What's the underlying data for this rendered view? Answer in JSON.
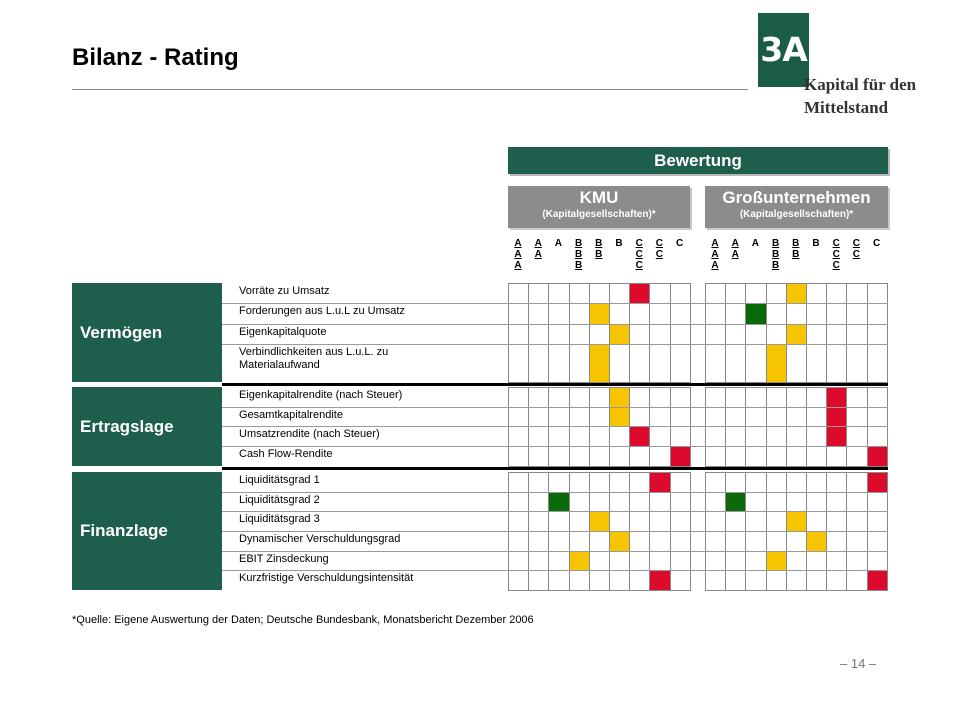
{
  "slide": {
    "title": "Bilanz - Rating",
    "logo": {
      "mark": "3A",
      "line1": "Kapital für den",
      "line2": "Mittelstand"
    },
    "header": "Bewertung",
    "groups": [
      {
        "name": "KMU",
        "sub": "(Kapitalgesellschaften)*"
      },
      {
        "name": "Großunternehmen",
        "sub": "(Kapitalgesellschaften)*"
      }
    ],
    "grades": [
      "A\nA\nA",
      "A\nA",
      "A",
      "B\nB\nB",
      "B\nB",
      "B",
      "C\nC\nC",
      "C\nC",
      "C"
    ],
    "source": "*Quelle: Eigene Auswertung der Daten; Deutsche Bundesbank, Monatsbericht Dezember 2006",
    "page": "– 14 –"
  },
  "colors": {
    "green": "#0a6a0a",
    "yellow": "#f7c400",
    "red": "#dd0b2b",
    "dark_green": "#1e5e4c"
  },
  "categories": [
    {
      "name": "Vermögen",
      "rows": [
        {
          "label": "Vorräte zu Umsatz",
          "kmu": 6,
          "kmu_color": "red",
          "gu": 4,
          "gu_color": "yellow"
        },
        {
          "label": "Forderungen aus L.u.L zu Umsatz",
          "kmu": 4,
          "kmu_color": "yellow",
          "gu": 2,
          "gu_color": "green"
        },
        {
          "label": "Eigenkapitalquote",
          "kmu": 5,
          "kmu_color": "yellow",
          "gu": 4,
          "gu_color": "yellow"
        },
        {
          "label": "Verbindlichkeiten aus L.u.L. zu Materialaufwand",
          "kmu": 4,
          "kmu_color": "yellow",
          "gu": 3,
          "gu_color": "yellow"
        }
      ]
    },
    {
      "name": "Ertragslage",
      "rows": [
        {
          "label": "Eigenkapitalrendite (nach Steuer)",
          "kmu": 5,
          "kmu_color": "yellow",
          "gu": 6,
          "gu_color": "red"
        },
        {
          "label": "Gesamtkapitalrendite",
          "kmu": 5,
          "kmu_color": "yellow",
          "gu": 6,
          "gu_color": "red"
        },
        {
          "label": "Umsatzrendite (nach Steuer)",
          "kmu": 6,
          "kmu_color": "red",
          "gu": 6,
          "gu_color": "red"
        },
        {
          "label": "Cash Flow-Rendite",
          "kmu": 8,
          "kmu_color": "red",
          "gu": 8,
          "gu_color": "red"
        }
      ]
    },
    {
      "name": "Finanzlage",
      "rows": [
        {
          "label": "Liquiditätsgrad 1",
          "kmu": 7,
          "kmu_color": "red",
          "gu": 8,
          "gu_color": "red"
        },
        {
          "label": "Liquiditätsgrad 2",
          "kmu": 2,
          "kmu_color": "green",
          "gu": 1,
          "gu_color": "green"
        },
        {
          "label": "Liquiditätsgrad 3",
          "kmu": 4,
          "kmu_color": "yellow",
          "gu": 4,
          "gu_color": "yellow"
        },
        {
          "label": "Dynamischer Verschuldungsgrad",
          "kmu": 5,
          "kmu_color": "yellow",
          "gu": 5,
          "gu_color": "yellow"
        },
        {
          "label": "EBIT Zinsdeckung",
          "kmu": 3,
          "kmu_color": "yellow",
          "gu": 3,
          "gu_color": "yellow"
        },
        {
          "label": "Kurzfristige Verschuldungsintensität",
          "kmu": 7,
          "kmu_color": "red",
          "gu": 8,
          "gu_color": "red"
        }
      ]
    }
  ]
}
